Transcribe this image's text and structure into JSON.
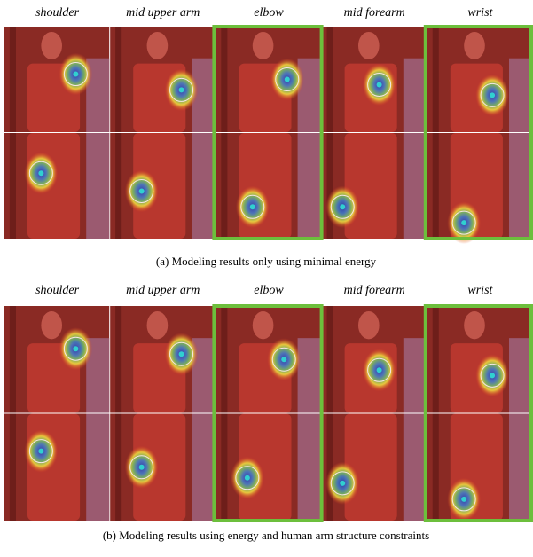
{
  "panels": [
    {
      "column_labels": [
        "shoulder",
        "mid upper arm",
        "elbow",
        "mid forearm",
        "wrist"
      ],
      "caption": "(a) Modeling results only using minimal energy"
    },
    {
      "column_labels": [
        "shoulder",
        "mid upper arm",
        "elbow",
        "mid forearm",
        "wrist"
      ],
      "caption": "(b) Modeling results using energy and human arm structure constraints"
    }
  ]
}
